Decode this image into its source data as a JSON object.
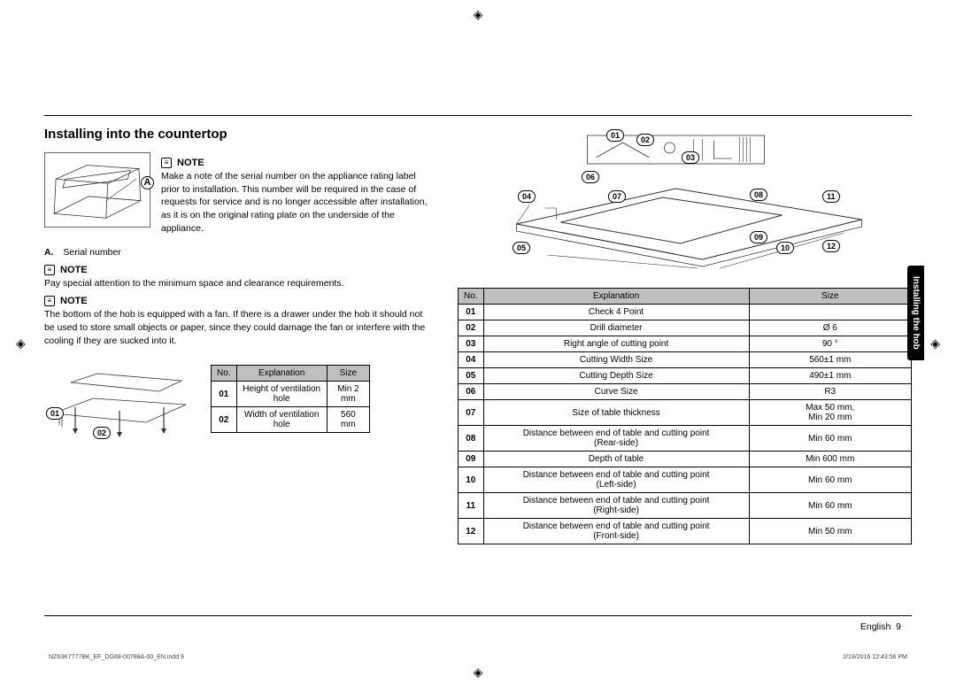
{
  "heading": "Installing into the countertop",
  "note_label": "NOTE",
  "note1": "Make a note of the serial number on the appliance rating label prior to installation. This number will be required in the case of requests for service and is no longer accessible after installation, as it is on the original rating plate on the underside of the appliance.",
  "legend_a_letter": "A.",
  "legend_a_text": "Serial number",
  "note2": "Pay special attention to the minimum space and clearance requirements.",
  "note3": "The bottom of the hob is equipped with a fan. If there is a drawer under the hob it should not be used to store small objects or paper, since they could damage the fan or interfere with the cooling if they are sucked into it.",
  "table_headers": {
    "no": "No.",
    "exp": "Explanation",
    "size": "Size"
  },
  "vent_table": [
    {
      "no": "01",
      "exp": "Height of ventilation hole",
      "size": "Min 2 mm"
    },
    {
      "no": "02",
      "exp": "Width of ventilation hole",
      "size": "560 mm"
    }
  ],
  "vent_callouts": {
    "c01": "01",
    "c02": "02"
  },
  "cutout_callouts": {
    "c01": "01",
    "c02": "02",
    "c03": "03",
    "c04": "04",
    "c05": "05",
    "c06": "06",
    "c07": "07",
    "c08": "08",
    "c09": "09",
    "c10": "10",
    "c11": "11",
    "c12": "12"
  },
  "label_A": "A",
  "cutout_table": [
    {
      "no": "01",
      "exp": "Check 4 Point",
      "size": ""
    },
    {
      "no": "02",
      "exp": "Drill diameter",
      "size": "Ø 6"
    },
    {
      "no": "03",
      "exp": "Right angle of cutting point",
      "size": "90 °"
    },
    {
      "no": "04",
      "exp": "Cutting Width Size",
      "size": "560±1 mm"
    },
    {
      "no": "05",
      "exp": "Cutting Depth Size",
      "size": "490±1 mm"
    },
    {
      "no": "06",
      "exp": "Curve Size",
      "size": "R3"
    },
    {
      "no": "07",
      "exp": "Size of table thickness",
      "size": "Max 50 mm,\nMin 20 mm"
    },
    {
      "no": "08",
      "exp": "Distance between end of table and cutting point\n(Rear-side)",
      "size": "Min 60 mm"
    },
    {
      "no": "09",
      "exp": "Depth of table",
      "size": "Min 600 mm"
    },
    {
      "no": "10",
      "exp": "Distance between end of table and cutting point\n(Left-side)",
      "size": "Min 60 mm"
    },
    {
      "no": "11",
      "exp": "Distance between end of table and cutting point\n(Right-side)",
      "size": "Min 60 mm"
    },
    {
      "no": "12",
      "exp": "Distance between end of table and cutting point\n(Front-side)",
      "size": "Min 50 mm"
    }
  ],
  "side_tab": "Installing the hob",
  "footer_lang": "English",
  "footer_page": "9",
  "footer_file": "NZ63K7777BK_EF_DG68-00788A-00_EN.indd   9",
  "footer_date": "2/18/2016   12:43:56 PM"
}
